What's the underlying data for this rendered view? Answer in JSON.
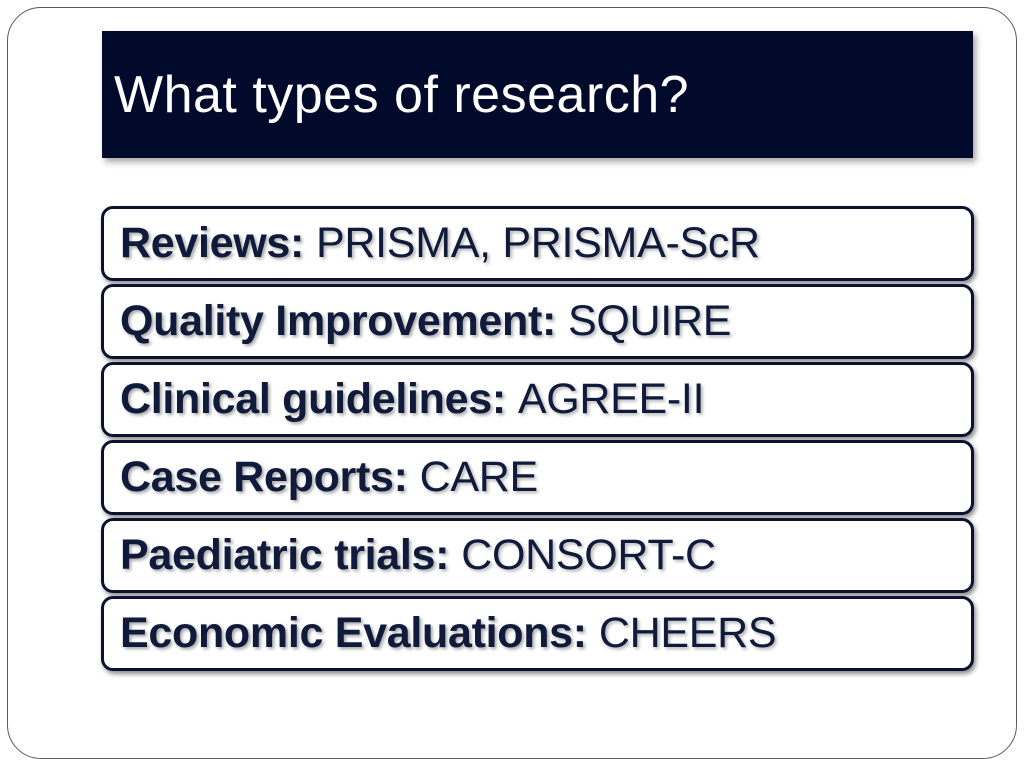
{
  "slide": {
    "title": "What types of research?",
    "items": [
      {
        "label": "Reviews:",
        "value": "PRISMA, PRISMA-ScR"
      },
      {
        "label": "Quality Improvement:",
        "value": "SQUIRE"
      },
      {
        "label": "Clinical guidelines:",
        "value": "AGREE-II"
      },
      {
        "label": "Case Reports:",
        "value": "CARE"
      },
      {
        "label": "Paediatric trials:",
        "value": "CONSORT-C"
      },
      {
        "label": "Economic Evaluations:",
        "value": "CHEERS"
      }
    ]
  },
  "colors": {
    "title_background": "#020a2c",
    "title_text": "#ffffff",
    "item_border": "#0a1230",
    "item_text": "#101a3a"
  }
}
